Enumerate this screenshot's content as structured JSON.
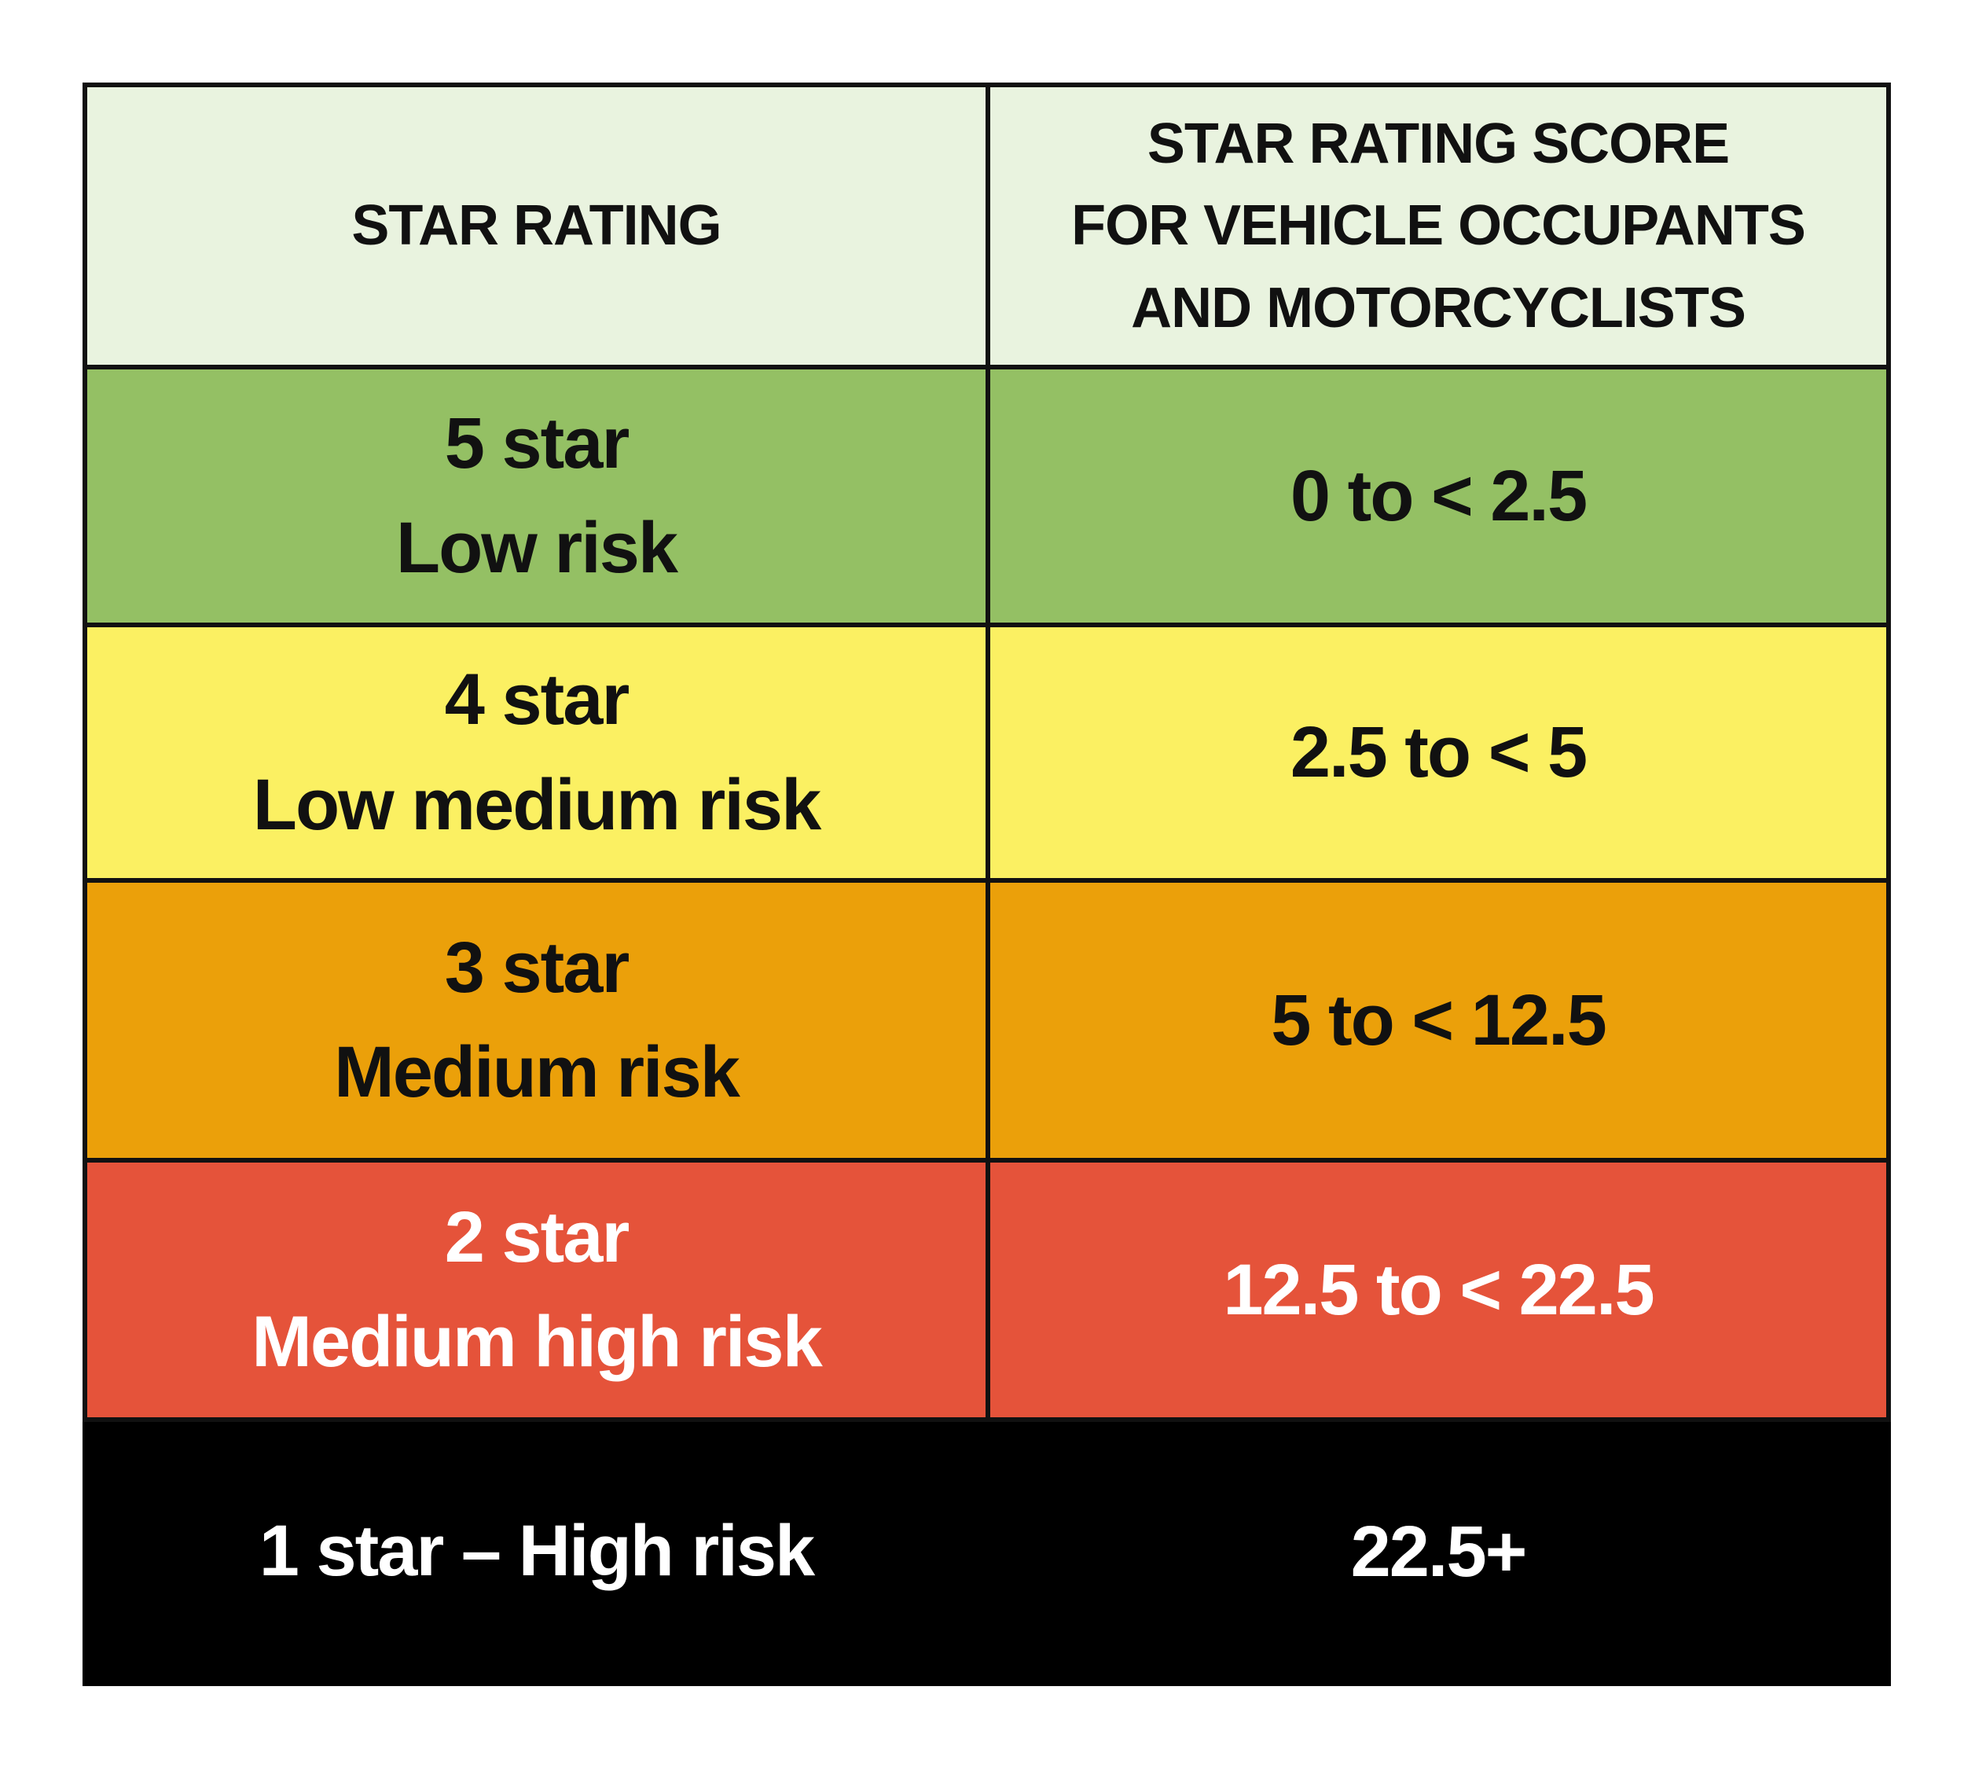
{
  "table": {
    "header": [
      [
        "STAR RATING"
      ],
      [
        "STAR RATING SCORE",
        "FOR VEHICLE OCCUPANTS",
        "AND MOTORCYCLISTS"
      ]
    ],
    "rows": [
      {
        "rating": [
          "5 star",
          "Low risk"
        ],
        "score": "0 to < 2.5"
      },
      {
        "rating": [
          "4 star",
          "Low medium risk"
        ],
        "score": "2.5 to < 5"
      },
      {
        "rating": [
          "3 star",
          "Medium risk"
        ],
        "score": "5 to < 12.5"
      },
      {
        "rating": [
          "2 star",
          "Medium high risk"
        ],
        "score": "12.5 to < 22.5"
      },
      {
        "rating": [
          "1 star – High risk"
        ],
        "score": "22.5+"
      }
    ]
  }
}
